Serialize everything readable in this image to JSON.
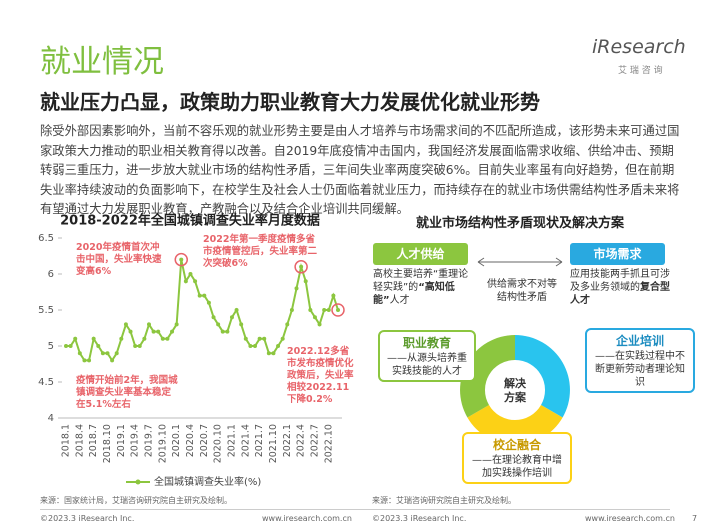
{
  "header": {
    "title": "就业情况",
    "subtitle": "就业压力凸显，政策助力职业教育大力发展优化就业形势",
    "logo": "iResearch",
    "logo_cn": "艾 瑞 咨 询"
  },
  "body": "除受外部因素影响外，当前不容乐观的就业形势主要是由人才培养与市场需求间的不匹配所造成，该形势未来可通过国家政策大力推动的职业相关教育得以改善。自2019年底疫情冲击国内，我国经济发展面临需求收缩、供给冲击、预期转弱三重压力，进一步放大就业市场的结构性矛盾，三年间失业率两度突破6%。目前失业率虽有向好趋势，但在前期失业率持续波动的负面影响下，在校学生及社会人士仍面临着就业压力，而持续存在的就业市场供需结构性矛盾未来将有望通过大力发展职业教育，产教融合以及结合企业培训共同缓解。",
  "chart_data": {
    "type": "line",
    "title": "2018-2022年全国城镇调查失业率月度数据",
    "categories": [
      "2018.1",
      null,
      null,
      "2018.4",
      null,
      null,
      "2018.7",
      null,
      null,
      "2018.10",
      null,
      null,
      "2019.1",
      null,
      null,
      "2019.4",
      null,
      null,
      "2019.7",
      null,
      null,
      "2019.10",
      null,
      null,
      "2020.1",
      null,
      null,
      "2020.4",
      null,
      null,
      "2020.7",
      null,
      null,
      "2020.10",
      null,
      null,
      "2021.1",
      null,
      null,
      "2021.4",
      null,
      null,
      "2021.7",
      null,
      null,
      "2021.10",
      null,
      null,
      "2022.1",
      null,
      null,
      "2022.4",
      null,
      null,
      "2022.7",
      null,
      null,
      "2022.10",
      null,
      null
    ],
    "series": [
      {
        "name": "全国城镇调查失业率(%)",
        "color": "#8cc63f",
        "values": [
          5.0,
          5.0,
          5.1,
          4.9,
          4.8,
          4.8,
          5.1,
          5.0,
          4.9,
          4.9,
          4.8,
          4.9,
          5.1,
          5.3,
          5.2,
          5.0,
          5.0,
          5.1,
          5.3,
          5.2,
          5.2,
          5.1,
          5.1,
          5.2,
          5.3,
          6.2,
          5.9,
          6.0,
          5.9,
          5.7,
          5.7,
          5.6,
          5.4,
          5.3,
          5.2,
          5.2,
          5.4,
          5.5,
          5.3,
          5.1,
          5.0,
          5.0,
          5.1,
          5.1,
          4.9,
          4.9,
          5.0,
          5.1,
          5.3,
          5.5,
          5.8,
          6.1,
          5.9,
          5.5,
          5.4,
          5.3,
          5.5,
          5.5,
          5.7,
          5.5
        ]
      }
    ],
    "ylim": [
      4,
      6.5
    ],
    "yticks": [
      4,
      4.5,
      5,
      5.5,
      6,
      6.5
    ],
    "grid": false,
    "legend": "bottom",
    "highlight_color": "#e8646a",
    "annotations": [
      "2020年疫情首次冲击中国，失业率快速变高6%",
      "2022年第一季度疫情多省市疫情管控后，失业率第二次突破6%",
      "疫情开始前2年，我国城镇调查失业率基本稳定在5.1%左右",
      "2022.12多省市发布疫情优化政策后，失业率相较2022.11下降0.2%"
    ]
  },
  "diagram": {
    "title": "就业市场结构性矛盾现状及解决方案",
    "supply": {
      "label": "人才供给",
      "text": [
        "高校主要培养“重理论轻实践”的",
        "“高知低能”",
        "人才"
      ]
    },
    "gap": "供给需求不对等结构性矛盾",
    "demand": {
      "label": "市场需求",
      "text": [
        "应用技能两手抓且可涉及多业务领域的",
        "复合型人才"
      ]
    },
    "center": "解决方案",
    "solutions": [
      {
        "label": "职业教育",
        "text": "——从源头培养重实践技能的人才"
      },
      {
        "label": "企业培训",
        "text": "——在实践过程中不断更新劳动者理论知识"
      },
      {
        "label": "校企融合",
        "text": "——在理论教育中增加实践操作培训"
      }
    ]
  },
  "footer": {
    "source_left": "来源：国家统计局，艾瑞咨询研究院自主研究及绘制。",
    "source_right": "来源：艾瑞咨询研究院自主研究及绘制。",
    "copyright": "©2023.3 iResearch Inc.",
    "url": "www.iresearch.com.cn",
    "page": "7"
  }
}
